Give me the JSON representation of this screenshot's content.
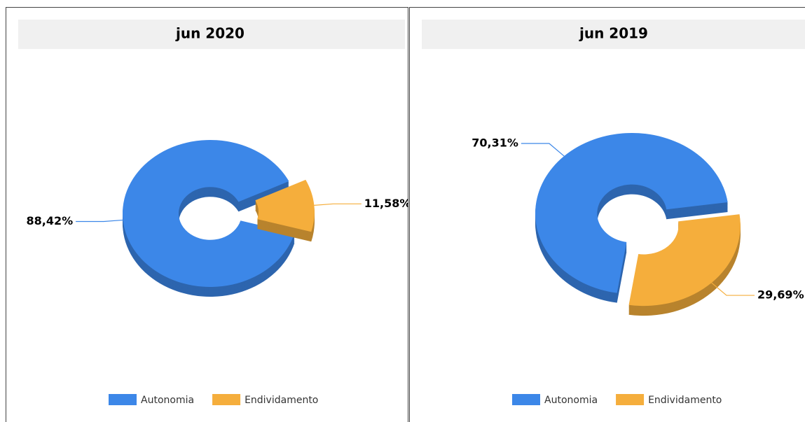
{
  "chart_data": [
    {
      "type": "pie",
      "title": "jun 2020",
      "categories": [
        "Autonomia",
        "Endividamento"
      ],
      "values": [
        88.42,
        11.58
      ],
      "value_labels": [
        "88,42%",
        "11,58%"
      ],
      "colors": [
        "#3c87e8",
        "#f5ae3c"
      ],
      "legend": "bottom"
    },
    {
      "type": "pie",
      "title": "jun 2019",
      "categories": [
        "Autonomia",
        "Endividamento"
      ],
      "values": [
        70.31,
        29.69
      ],
      "value_labels": [
        "70,31%",
        "29,69%"
      ],
      "colors": [
        "#3c87e8",
        "#f5ae3c"
      ],
      "legend": "bottom"
    }
  ]
}
